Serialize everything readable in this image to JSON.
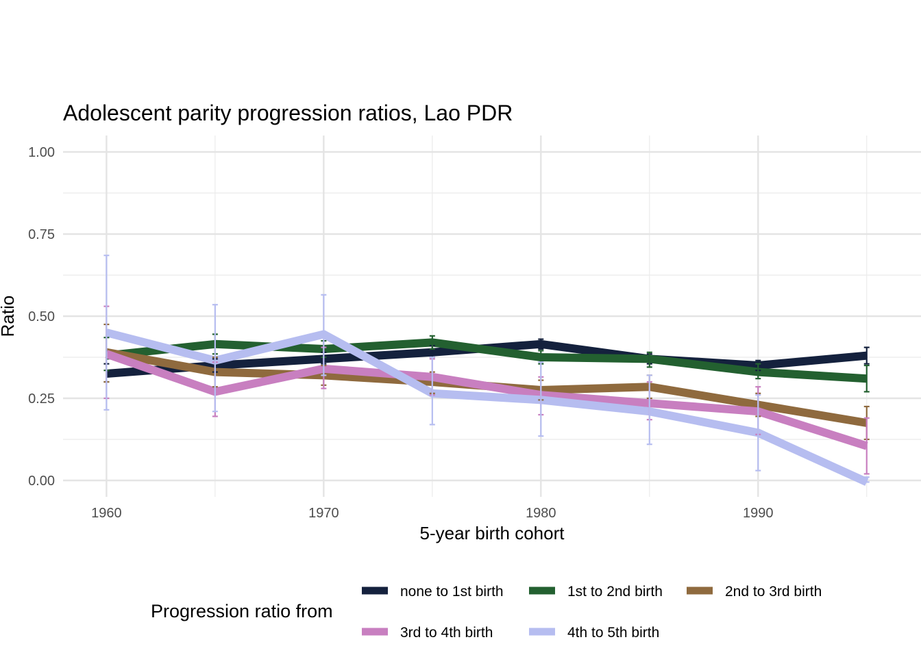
{
  "chart_data": {
    "type": "line",
    "title": "Adolescent parity progression ratios,  Lao PDR",
    "xlabel": "5-year birth cohort",
    "ylabel": "Ratio",
    "x": [
      1960,
      1965,
      1970,
      1975,
      1980,
      1985,
      1990,
      1995
    ],
    "xlim": [
      1958,
      1997.5
    ],
    "ylim": [
      -0.05,
      1.05
    ],
    "x_ticks": [
      1960,
      1970,
      1980,
      1990
    ],
    "x_tick_labels": [
      "1960",
      "1970",
      "1980",
      "1990"
    ],
    "y_ticks": [
      0,
      0.25,
      0.5,
      0.75,
      1.0
    ],
    "y_tick_labels": [
      "0.00",
      "0.25",
      "0.50",
      "0.75",
      "1.00"
    ],
    "grid": true,
    "legend_title": "Progression ratio from",
    "legend_position": "bottom",
    "series": [
      {
        "name": "none to 1st birth",
        "color": "#14213d",
        "values": [
          0.325,
          0.35,
          0.37,
          0.39,
          0.415,
          0.37,
          0.35,
          0.38
        ],
        "lower": [
          0.3,
          0.33,
          0.355,
          0.375,
          0.4,
          0.355,
          0.335,
          0.355
        ],
        "upper": [
          0.355,
          0.37,
          0.39,
          0.41,
          0.43,
          0.385,
          0.365,
          0.405
        ]
      },
      {
        "name": "1st to 2nd birth",
        "color": "#236030",
        "values": [
          0.38,
          0.415,
          0.4,
          0.42,
          0.375,
          0.37,
          0.33,
          0.31
        ],
        "lower": [
          0.335,
          0.385,
          0.375,
          0.4,
          0.355,
          0.345,
          0.31,
          0.27
        ],
        "upper": [
          0.435,
          0.445,
          0.425,
          0.44,
          0.395,
          0.39,
          0.355,
          0.35
        ]
      },
      {
        "name": "2nd to 3rd birth",
        "color": "#8f6a3e",
        "values": [
          0.39,
          0.33,
          0.32,
          0.3,
          0.275,
          0.285,
          0.23,
          0.175
        ],
        "lower": [
          0.3,
          0.285,
          0.29,
          0.265,
          0.245,
          0.25,
          0.195,
          0.125
        ],
        "upper": [
          0.475,
          0.375,
          0.35,
          0.33,
          0.305,
          0.32,
          0.265,
          0.225
        ]
      },
      {
        "name": "3rd to 4th birth",
        "color": "#c87fc0",
        "values": [
          0.385,
          0.27,
          0.34,
          0.315,
          0.26,
          0.235,
          0.21,
          0.105
        ],
        "lower": [
          0.25,
          0.195,
          0.28,
          0.26,
          0.2,
          0.185,
          0.14,
          0.02
        ],
        "upper": [
          0.53,
          0.36,
          0.405,
          0.37,
          0.315,
          0.3,
          0.285,
          0.19
        ]
      },
      {
        "name": "4th to 5th birth",
        "color": "#b6bdf0",
        "values": [
          0.45,
          0.365,
          0.445,
          0.265,
          0.245,
          0.21,
          0.145,
          -0.005
        ],
        "lower": [
          0.215,
          0.21,
          0.32,
          0.17,
          0.135,
          0.11,
          0.03,
          -0.005
        ],
        "upper": [
          0.685,
          0.535,
          0.565,
          0.375,
          0.36,
          0.32,
          0.26,
          0.01
        ]
      }
    ]
  }
}
